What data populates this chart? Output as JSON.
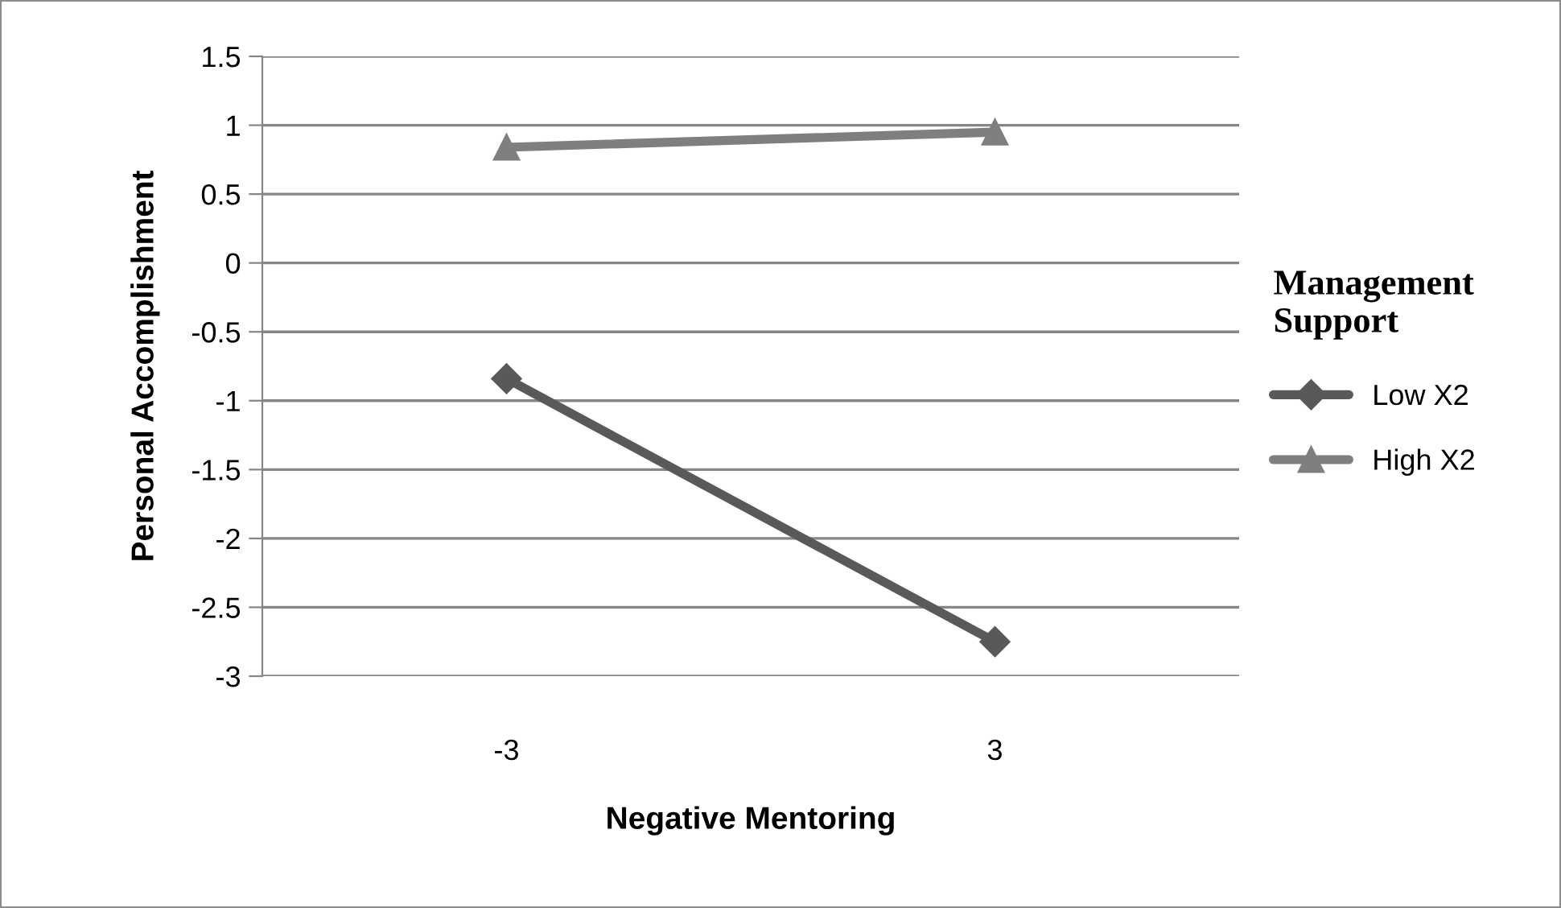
{
  "chart_data": {
    "type": "line",
    "xlabel": "Negative Mentoring",
    "ylabel": "Personal Accomplishment",
    "legend_title": "Management Support",
    "categories": [
      "-3",
      "3"
    ],
    "series": [
      {
        "name": "Low X2",
        "color": "#595959",
        "values": [
          -0.84,
          -2.75
        ],
        "marker": "diamond"
      },
      {
        "name": "High X2",
        "color": "#7f7f7f",
        "values": [
          0.84,
          0.95
        ],
        "marker": "triangle"
      }
    ],
    "ylim": [
      -3,
      1.5
    ],
    "yticks": [
      -3,
      -2.5,
      -2,
      -1.5,
      -1,
      -0.5,
      0,
      0.5,
      1,
      1.5
    ],
    "grid": "y",
    "legend": "right",
    "line_style": "solid"
  }
}
